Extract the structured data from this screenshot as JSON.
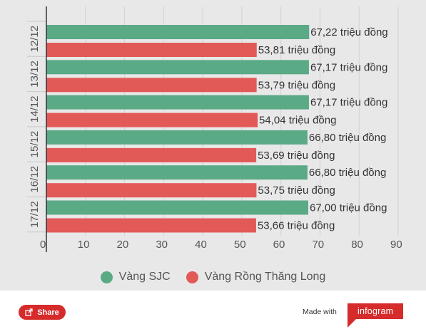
{
  "chart_data": {
    "type": "bar",
    "orientation": "horizontal",
    "categories": [
      "12/12",
      "13/12",
      "14/12",
      "15/12",
      "16/12",
      "17/12"
    ],
    "series": [
      {
        "name": "Vàng SJC",
        "color": "#5aaa86",
        "values": [
          67.22,
          67.17,
          67.17,
          66.8,
          66.8,
          67.0
        ],
        "labels": [
          "67,22 triệu đồng",
          "67,17 triệu đồng",
          "67,17 triệu đồng",
          "66,80 triệu đồng",
          "66,80 triệu đồng",
          "67,00 triệu đồng"
        ]
      },
      {
        "name": "Vàng Rồng Thăng Long",
        "color": "#e25a58",
        "values": [
          53.81,
          53.79,
          54.04,
          53.69,
          53.75,
          53.66
        ],
        "labels": [
          "53,81 triệu đồng",
          "53,79 triệu đồng",
          "54,04 triệu đồng",
          "53,69 triệu đồng",
          "53,75 triệu đồng",
          "53,66 triệu đồng"
        ]
      }
    ],
    "xlim": [
      0,
      90
    ],
    "xticks": [
      "0",
      "10",
      "20",
      "30",
      "40",
      "50",
      "60",
      "70",
      "80",
      "90"
    ],
    "grid": true,
    "legend_position": "bottom"
  },
  "footer": {
    "share_label": "Share",
    "made_with_label": "Made with",
    "brand_label": "infogram"
  }
}
